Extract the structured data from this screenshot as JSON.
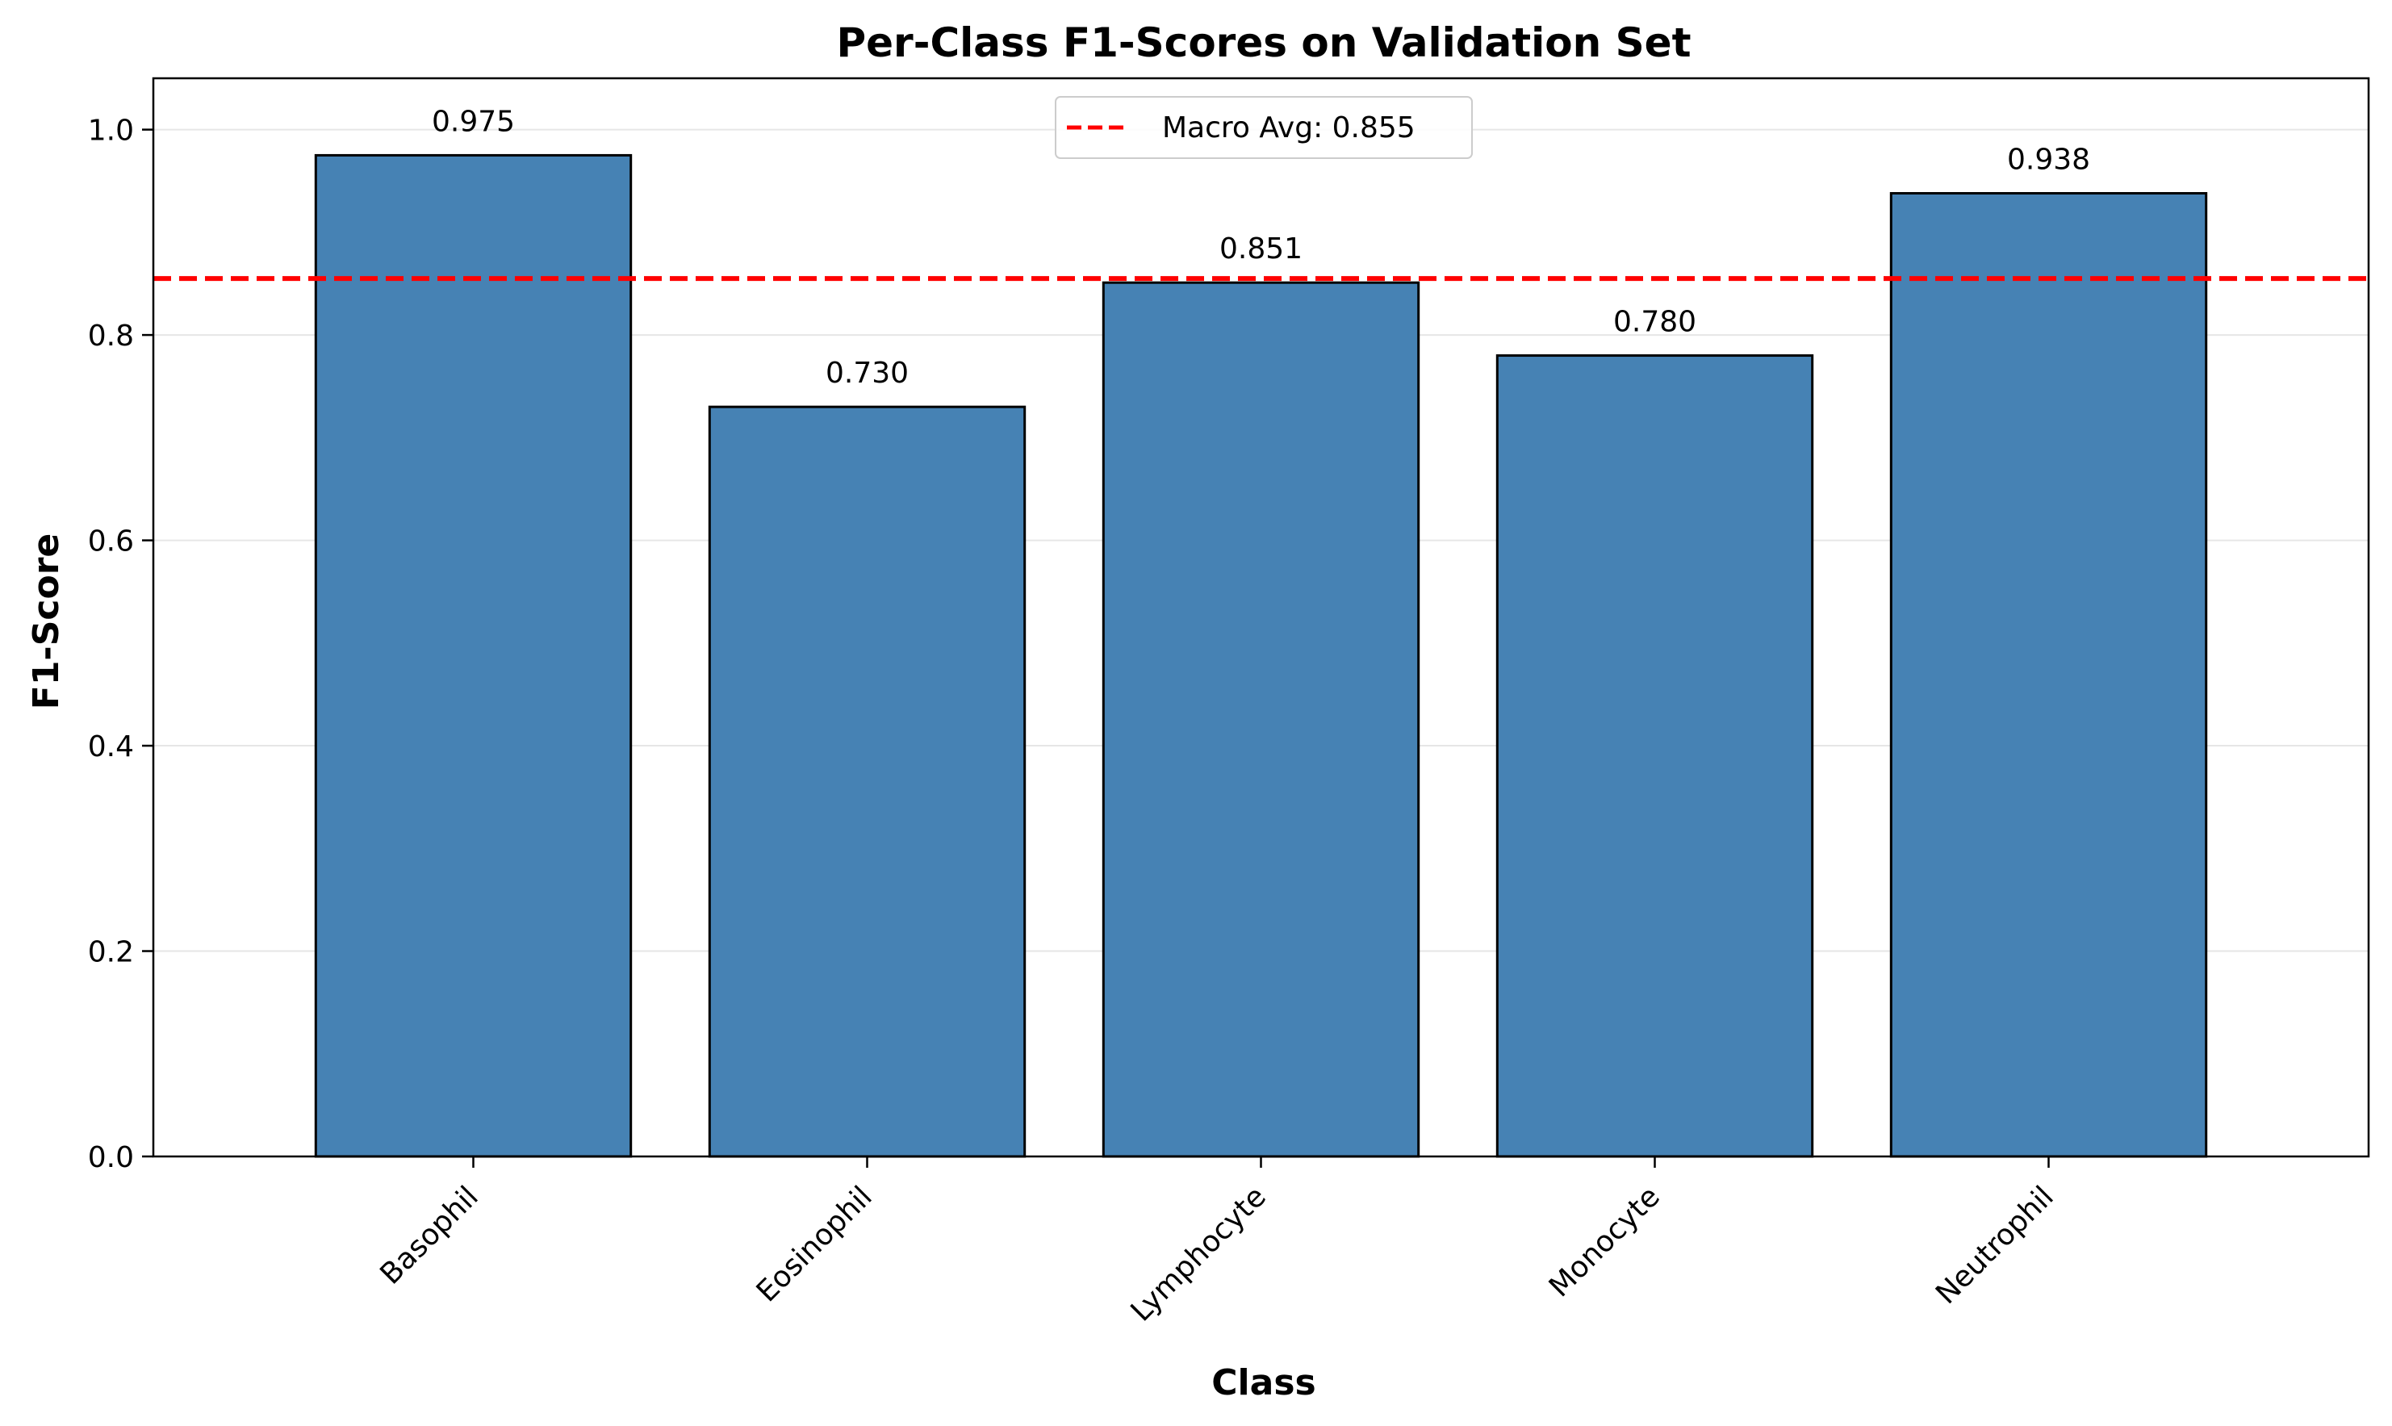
{
  "chart_data": {
    "type": "bar",
    "title": "Per-Class F1-Scores on Validation Set",
    "xlabel": "Class",
    "ylabel": "F1-Score",
    "categories": [
      "Basophil",
      "Eosinophil",
      "Lymphocyte",
      "Monocyte",
      "Neutrophil"
    ],
    "values": [
      0.975,
      0.73,
      0.851,
      0.78,
      0.938
    ],
    "value_labels": [
      "0.975",
      "0.730",
      "0.851",
      "0.780",
      "0.938"
    ],
    "ylim": [
      0,
      1.05
    ],
    "yticks": [
      0.0,
      0.2,
      0.4,
      0.6,
      0.8,
      1.0
    ],
    "ytick_labels": [
      "0.0",
      "0.2",
      "0.4",
      "0.6",
      "0.8",
      "1.0"
    ],
    "grid": "y-axis, light",
    "reference_line": {
      "value": 0.855,
      "label": "Macro Avg: 0.855",
      "style": "dashed"
    },
    "legend": {
      "position": "top-center",
      "entries": [
        "Macro Avg: 0.855"
      ]
    },
    "colors": {
      "bar_fill": "#4682b4",
      "bar_edge": "#000000",
      "reference_line": "#ff0000",
      "grid": "#e6e6e6"
    }
  }
}
